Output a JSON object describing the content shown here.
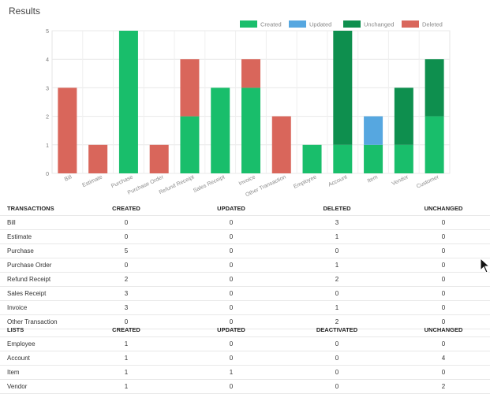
{
  "page_title": "Results",
  "colors": {
    "created": "#19be6b",
    "updated": "#56a7e0",
    "unchanged": "#0e8f4e",
    "deleted": "#d9665b"
  },
  "chart_data": {
    "type": "bar",
    "stacked": true,
    "categories": [
      "Bill",
      "Estimate",
      "Purchase",
      "Purchase Order",
      "Refund Receipt",
      "Sales Receipt",
      "Invoice",
      "Other Transaction",
      "Employee",
      "Account",
      "Item",
      "Vendor",
      "Customer"
    ],
    "series": [
      {
        "name": "Created",
        "color": "#19be6b",
        "values": [
          0,
          0,
          5,
          0,
          2,
          3,
          3,
          0,
          1,
          1,
          1,
          1,
          2
        ]
      },
      {
        "name": "Updated",
        "color": "#56a7e0",
        "values": [
          0,
          0,
          0,
          0,
          0,
          0,
          0,
          0,
          0,
          0,
          1,
          0,
          0
        ]
      },
      {
        "name": "Unchanged",
        "color": "#0e8f4e",
        "values": [
          0,
          0,
          0,
          0,
          0,
          0,
          0,
          0,
          0,
          4,
          0,
          2,
          2
        ]
      },
      {
        "name": "Deleted",
        "color": "#d9665b",
        "values": [
          3,
          1,
          0,
          1,
          2,
          0,
          1,
          2,
          0,
          0,
          0,
          0,
          0
        ]
      }
    ],
    "ylim": [
      0,
      5
    ],
    "yticks": [
      "0",
      "1",
      "2",
      "3",
      "4",
      "5"
    ],
    "legend_position": "top-right",
    "grid": true
  },
  "transactions": {
    "headers": [
      "TRANSACTIONS",
      "CREATED",
      "UPDATED",
      "DELETED",
      "UNCHANGED"
    ],
    "rows": [
      [
        "Bill",
        "0",
        "0",
        "3",
        "0"
      ],
      [
        "Estimate",
        "0",
        "0",
        "1",
        "0"
      ],
      [
        "Purchase",
        "5",
        "0",
        "0",
        "0"
      ],
      [
        "Purchase Order",
        "0",
        "0",
        "1",
        "0"
      ],
      [
        "Refund Receipt",
        "2",
        "0",
        "2",
        "0"
      ],
      [
        "Sales Receipt",
        "3",
        "0",
        "0",
        "0"
      ],
      [
        "Invoice",
        "3",
        "0",
        "1",
        "0"
      ],
      [
        "Other Transaction",
        "0",
        "0",
        "2",
        "0"
      ]
    ]
  },
  "lists": {
    "headers": [
      "LISTS",
      "CREATED",
      "UPDATED",
      "DEACTIVATED",
      "UNCHANGED"
    ],
    "rows": [
      [
        "Employee",
        "1",
        "0",
        "0",
        "0"
      ],
      [
        "Account",
        "1",
        "0",
        "0",
        "4"
      ],
      [
        "Item",
        "1",
        "1",
        "0",
        "0"
      ],
      [
        "Vendor",
        "1",
        "0",
        "0",
        "2"
      ]
    ]
  }
}
